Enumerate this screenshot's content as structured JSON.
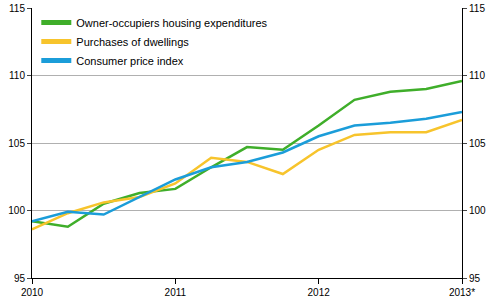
{
  "chart_data": {
    "type": "line",
    "categories": [
      "2010",
      null,
      null,
      null,
      "2011",
      null,
      null,
      null,
      "2012",
      null,
      null,
      null,
      "2013*"
    ],
    "series": [
      {
        "name": "Owner-occupiers housing expenditures",
        "color": "#3fae2a",
        "values": [
          99.2,
          98.8,
          100.5,
          101.3,
          101.6,
          103.2,
          104.7,
          104.5,
          106.3,
          108.2,
          108.8,
          109.0,
          109.6
        ]
      },
      {
        "name": "Purchases of dwellings",
        "color": "#f7c42c",
        "values": [
          98.6,
          99.8,
          100.6,
          101.0,
          102.0,
          103.9,
          103.6,
          102.7,
          104.5,
          105.6,
          105.8,
          105.8,
          106.7
        ]
      },
      {
        "name": "Consumer price index",
        "color": "#1b9dd9",
        "values": [
          99.2,
          99.9,
          99.7,
          101.0,
          102.3,
          103.2,
          103.6,
          104.3,
          105.5,
          106.3,
          106.5,
          106.8,
          107.3
        ]
      }
    ],
    "ylim": [
      95,
      115
    ],
    "yticks": [
      95,
      100,
      105,
      110,
      115
    ],
    "y2lim": [
      95,
      115
    ],
    "y2ticks": [
      95,
      100,
      105,
      110,
      115
    ],
    "grid": true,
    "legend": "top left"
  }
}
